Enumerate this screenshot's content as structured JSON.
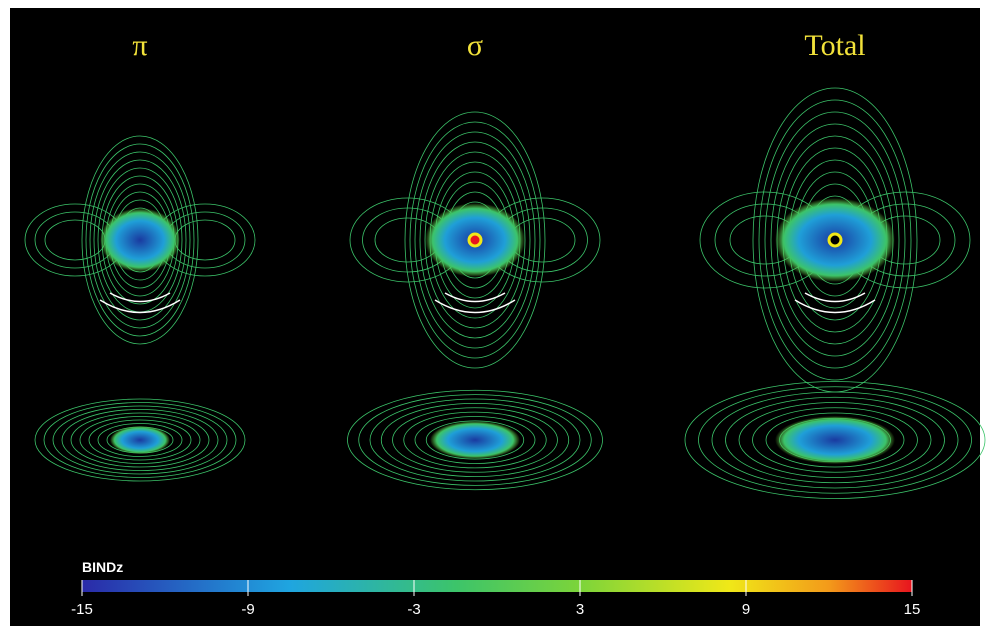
{
  "panels": [
    {
      "title": "π"
    },
    {
      "title": "σ"
    },
    {
      "title": "Total"
    }
  ],
  "colorbar": {
    "label": "BINDz",
    "lim": [
      -15,
      15
    ],
    "ticks": [
      -15,
      -9,
      -3,
      3,
      9,
      15
    ]
  }
}
